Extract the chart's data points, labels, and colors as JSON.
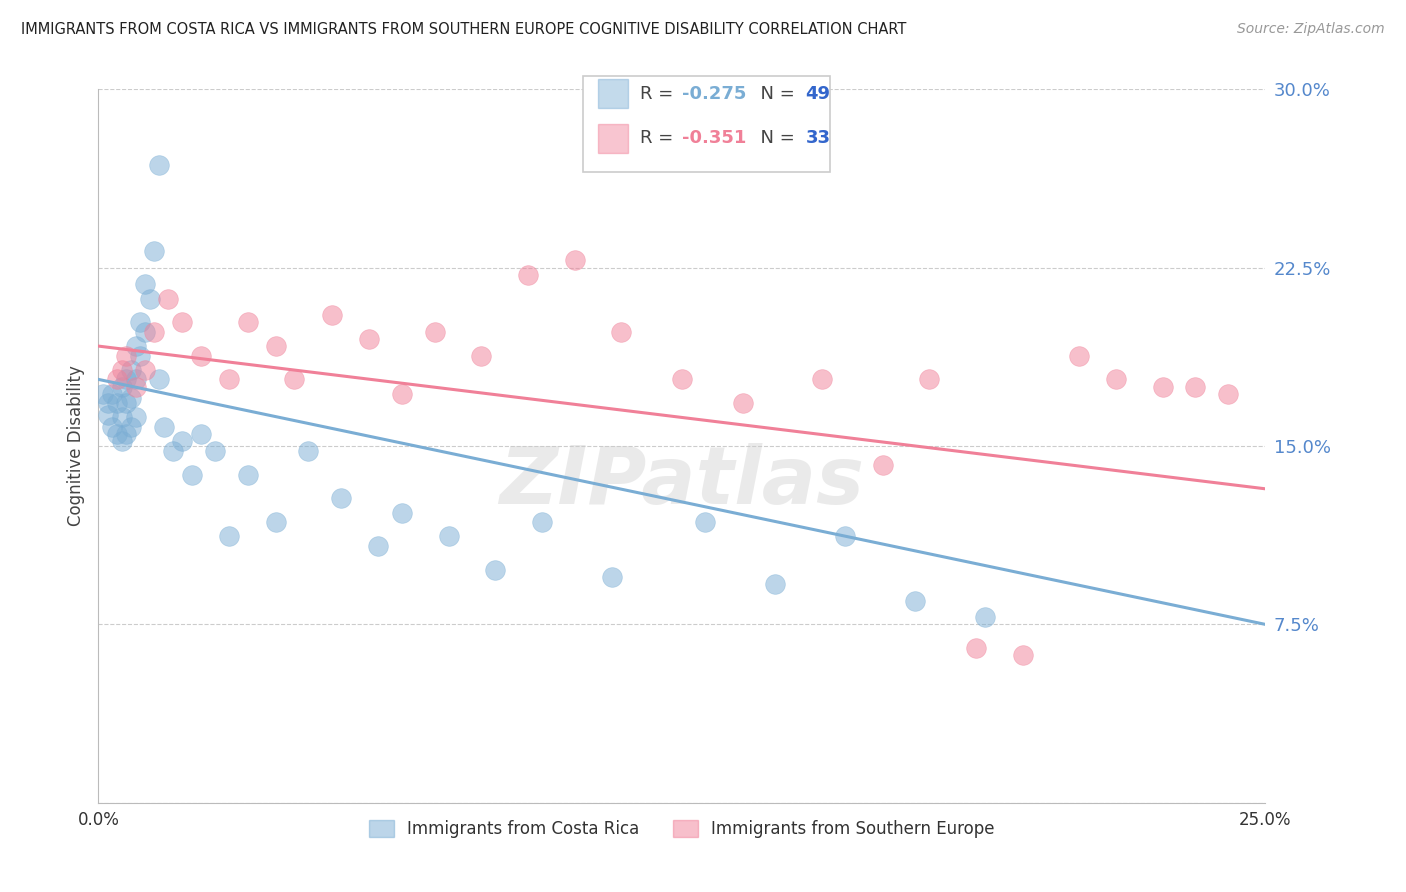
{
  "title": "IMMIGRANTS FROM COSTA RICA VS IMMIGRANTS FROM SOUTHERN EUROPE COGNITIVE DISABILITY CORRELATION CHART",
  "source": "Source: ZipAtlas.com",
  "ylabel": "Cognitive Disability",
  "xlim": [
    0.0,
    0.25
  ],
  "ylim": [
    0.0,
    0.3
  ],
  "yticks": [
    0.0,
    0.075,
    0.15,
    0.225,
    0.3
  ],
  "ytick_labels": [
    "",
    "7.5%",
    "15.0%",
    "22.5%",
    "30.0%"
  ],
  "xticks": [
    0.0,
    0.25
  ],
  "xtick_labels": [
    "0.0%",
    "25.0%"
  ],
  "grid_color": "#cccccc",
  "background_color": "#ffffff",
  "watermark": "ZIPatlas",
  "series": [
    {
      "name": "Immigrants from Costa Rica",
      "color": "#7aadd4",
      "R": -0.275,
      "N": 49,
      "x": [
        0.001,
        0.002,
        0.002,
        0.003,
        0.003,
        0.004,
        0.004,
        0.005,
        0.005,
        0.005,
        0.006,
        0.006,
        0.006,
        0.007,
        0.007,
        0.007,
        0.008,
        0.008,
        0.008,
        0.009,
        0.009,
        0.01,
        0.01,
        0.011,
        0.012,
        0.013,
        0.013,
        0.014,
        0.016,
        0.018,
        0.02,
        0.022,
        0.025,
        0.028,
        0.032,
        0.038,
        0.045,
        0.052,
        0.06,
        0.065,
        0.075,
        0.085,
        0.095,
        0.11,
        0.13,
        0.145,
        0.16,
        0.175,
        0.19
      ],
      "y": [
        0.172,
        0.168,
        0.163,
        0.172,
        0.158,
        0.168,
        0.155,
        0.175,
        0.162,
        0.152,
        0.178,
        0.168,
        0.155,
        0.182,
        0.17,
        0.158,
        0.192,
        0.178,
        0.162,
        0.202,
        0.188,
        0.218,
        0.198,
        0.212,
        0.232,
        0.268,
        0.178,
        0.158,
        0.148,
        0.152,
        0.138,
        0.155,
        0.148,
        0.112,
        0.138,
        0.118,
        0.148,
        0.128,
        0.108,
        0.122,
        0.112,
        0.098,
        0.118,
        0.095,
        0.118,
        0.092,
        0.112,
        0.085,
        0.078
      ],
      "trend_x": [
        0.0,
        0.25
      ],
      "trend_y": [
        0.178,
        0.075
      ]
    },
    {
      "name": "Immigrants from Southern Europe",
      "color": "#f08098",
      "R": -0.351,
      "N": 33,
      "x": [
        0.004,
        0.005,
        0.006,
        0.008,
        0.01,
        0.012,
        0.015,
        0.018,
        0.022,
        0.028,
        0.032,
        0.038,
        0.042,
        0.05,
        0.058,
        0.065,
        0.072,
        0.082,
        0.092,
        0.102,
        0.112,
        0.125,
        0.138,
        0.155,
        0.168,
        0.178,
        0.188,
        0.198,
        0.21,
        0.218,
        0.228,
        0.235,
        0.242
      ],
      "y": [
        0.178,
        0.182,
        0.188,
        0.175,
        0.182,
        0.198,
        0.212,
        0.202,
        0.188,
        0.178,
        0.202,
        0.192,
        0.178,
        0.205,
        0.195,
        0.172,
        0.198,
        0.188,
        0.222,
        0.228,
        0.198,
        0.178,
        0.168,
        0.178,
        0.142,
        0.178,
        0.065,
        0.062,
        0.188,
        0.178,
        0.175,
        0.175,
        0.172
      ],
      "trend_x": [
        0.0,
        0.25
      ],
      "trend_y": [
        0.192,
        0.132
      ]
    }
  ],
  "legend_entries": [
    {
      "r_text": "R = ",
      "r_val": "-0.275",
      "n_text": "  N = ",
      "n_val": "49",
      "color": "#7aadd4"
    },
    {
      "r_text": "R = ",
      "r_val": "-0.351",
      "n_text": "  N = ",
      "n_val": "33",
      "color": "#f08098"
    }
  ]
}
